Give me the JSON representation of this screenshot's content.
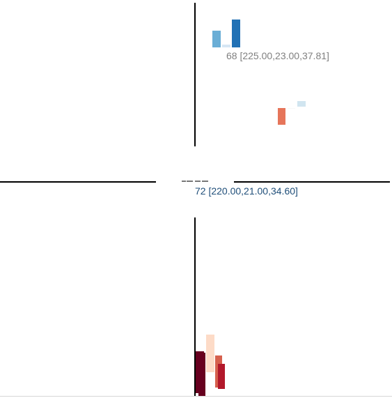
{
  "chart_data": {
    "type": "bar",
    "title": "",
    "xlabel": "",
    "ylabel": "",
    "grid": false,
    "legend": "none",
    "clusters": [
      {
        "id": "top",
        "values": [
          12,
          2,
          20
        ],
        "colors": [
          "#6aaed6",
          "#d6e6f4",
          "#2171b5"
        ]
      },
      {
        "id": "right",
        "values": [
          12,
          0,
          4
        ],
        "colors": [
          "#e6755a",
          "#f7f7f7",
          "#d1e5f0"
        ]
      },
      {
        "id": "center",
        "values": [
          1,
          1,
          1,
          1
        ],
        "colors": [
          "#777777",
          "#777777",
          "#777777",
          "#777777"
        ]
      },
      {
        "id": "bottom",
        "values": [
          31,
          30,
          27,
          23,
          18
        ],
        "colors": [
          "#67001f",
          "#67001f",
          "#fddbc7",
          "#d6604d",
          "#b2182b"
        ]
      }
    ],
    "annotations": [
      {
        "text": "68 [225.00,23.00,37.81]",
        "color": "#808080"
      },
      {
        "text": "72 [220.00,21.00,34.60]",
        "color": "#1f4e79"
      }
    ]
  }
}
